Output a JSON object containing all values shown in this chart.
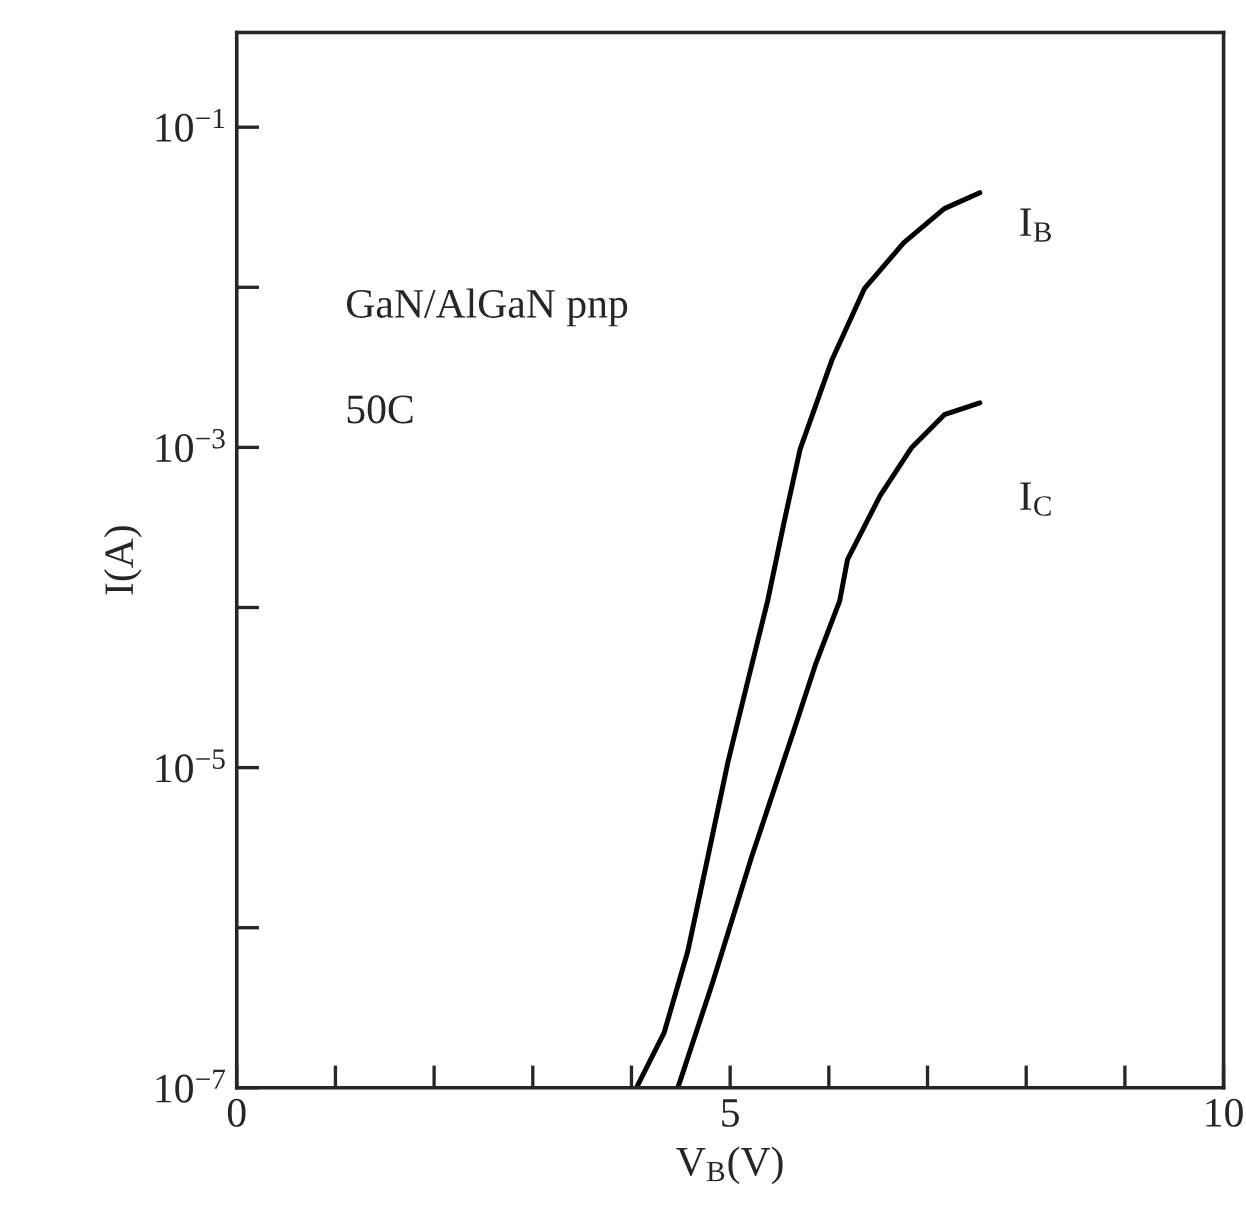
{
  "chart_data": {
    "type": "line",
    "xlabel": "V$_{B}$(V)",
    "ylabel": "I(A)",
    "log": "y",
    "grid": false,
    "legend": false,
    "xlim": [
      0,
      10
    ],
    "xticks": [
      0,
      {
        "value": 1,
        "label": null
      },
      {
        "value": 2,
        "label": null
      },
      {
        "value": 3,
        "label": null
      },
      {
        "value": 4,
        "label": null
      },
      5,
      {
        "value": 6,
        "label": null
      },
      {
        "value": 7,
        "label": null
      },
      {
        "value": 8,
        "label": null
      },
      {
        "value": 9,
        "label": null
      },
      10
    ],
    "ylim": [
      1e-07,
      0.39
    ],
    "yticks": [
      {
        "value": 1e-07,
        "label": "10$^{−7}$"
      },
      {
        "value": 1e-06,
        "label": null
      },
      {
        "value": 1e-05,
        "label": "10$^{−5}$"
      },
      {
        "value": 0.0001,
        "label": null
      },
      {
        "value": 0.001,
        "label": "10$^{−3}$"
      },
      {
        "value": 0.01,
        "label": null
      },
      {
        "value": 0.1,
        "label": "10$^{−1}$"
      }
    ],
    "annotations": [
      "GaN/AlGaN pnp",
      "50C"
    ],
    "series": [
      {
        "name": "I$_{B}$",
        "color": "#000000",
        "x": [
          4.05,
          4.33,
          4.57,
          4.74,
          4.98,
          5.18,
          5.38,
          5.55,
          5.71,
          6.03,
          6.36,
          6.76,
          7.17,
          7.53
        ],
        "values": [
          1e-07,
          2.2e-07,
          7.1e-07,
          2.2e-06,
          1.1e-05,
          3.5e-05,
          0.00011,
          0.00035,
          0.00098,
          0.0035,
          0.0098,
          0.019,
          0.031,
          0.039
        ]
      },
      {
        "name": "I$_{C}$",
        "color": "#000000",
        "x": [
          4.47,
          4.82,
          5.22,
          5.63,
          5.87,
          6.11,
          6.19,
          6.52,
          6.84,
          7.17,
          7.53
        ],
        "values": [
          1e-07,
          4.5e-07,
          2.8e-06,
          1.6e-05,
          4.5e-05,
          0.00011,
          0.0002,
          0.0005,
          0.001,
          0.0016,
          0.0019
        ]
      }
    ]
  }
}
